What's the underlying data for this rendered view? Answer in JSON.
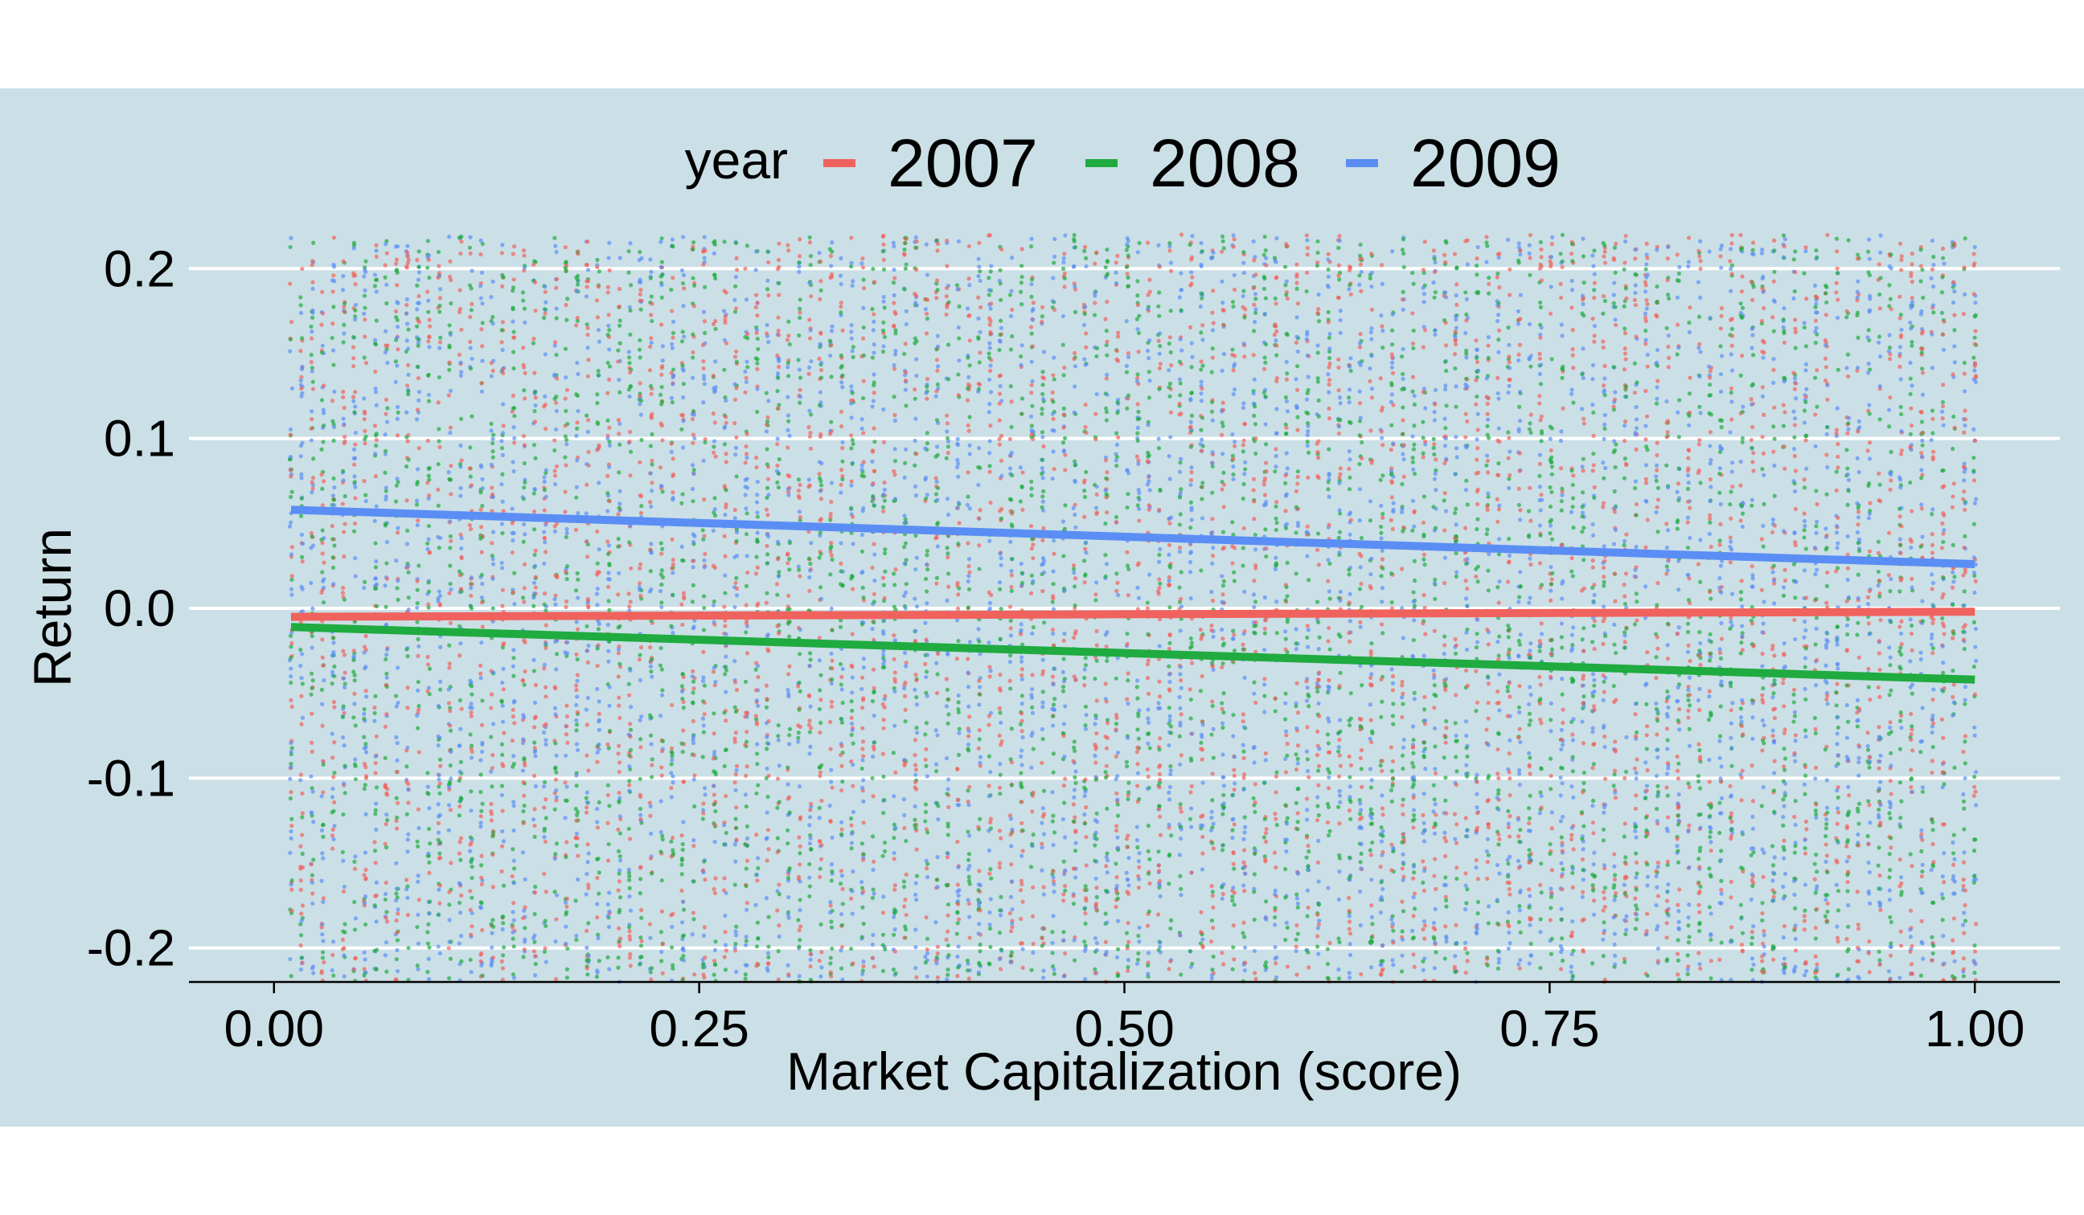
{
  "chart_data": {
    "type": "scatter",
    "title": "",
    "xlabel": "Market Capitalization (score)",
    "ylabel": "Return",
    "xlim": [
      -0.05,
      1.05
    ],
    "ylim": [
      -0.22,
      0.22
    ],
    "x_ticks": [
      0.0,
      0.25,
      0.5,
      0.75,
      1.0
    ],
    "x_tick_labels": [
      "0.00",
      "0.25",
      "0.50",
      "0.75",
      "1.00"
    ],
    "y_ticks": [
      -0.2,
      -0.1,
      0.0,
      0.1,
      0.2
    ],
    "y_tick_labels": [
      "-0.2",
      "-0.1",
      "0.0",
      "0.1",
      "0.2"
    ],
    "legend": {
      "title": "year",
      "position": "top"
    },
    "grid": "horizontal-major",
    "colors": {
      "panel_bg": "#cbdfe6",
      "grid": "#ffffff",
      "text": "#000000"
    },
    "points_note_values": {
      "x_range": [
        0.01,
        1.0
      ],
      "y_range": [
        -0.22,
        0.22
      ]
    },
    "series": [
      {
        "name": "2007",
        "color": "#f0625d",
        "fit_line": {
          "x": [
            0.01,
            1.0
          ],
          "y": [
            -0.005,
            -0.002
          ]
        }
      },
      {
        "name": "2008",
        "color": "#1fab40",
        "fit_line": {
          "x": [
            0.01,
            1.0
          ],
          "y": [
            -0.011,
            -0.042
          ]
        }
      },
      {
        "name": "2009",
        "color": "#5b8ef5",
        "fit_line": {
          "x": [
            0.01,
            1.0
          ],
          "y": [
            0.058,
            0.026
          ]
        }
      }
    ]
  }
}
